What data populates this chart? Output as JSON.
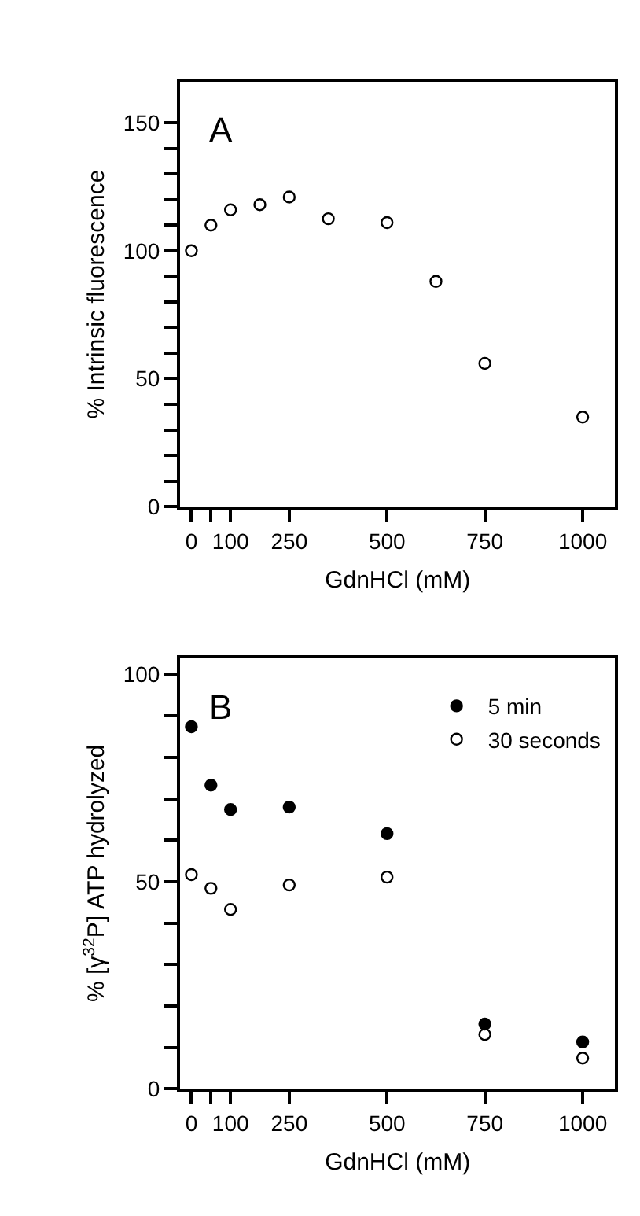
{
  "chart_data": [
    {
      "type": "scatter",
      "xlabel": "GdnHCl (mM)",
      "ylabel": "% Intrinsic fluorescence",
      "annotations": [
        "A"
      ],
      "series": [
        {
          "color": "#000000",
          "x": [
            0,
            50,
            100,
            175,
            250,
            350,
            500,
            625,
            750,
            1000
          ],
          "values": [
            100,
            110,
            116,
            118,
            121,
            112.5,
            111,
            88,
            56,
            35
          ],
          "marker": "circle-open"
        }
      ],
      "xlim": [
        -29,
        1083
      ],
      "xticks": [
        0,
        {
          "value": 50,
          "label": null
        },
        100,
        250,
        500,
        750,
        1000
      ],
      "ylim": [
        0,
        166
      ],
      "yticks": [
        0,
        {
          "value": 10,
          "label": null
        },
        {
          "value": 20,
          "label": null
        },
        {
          "value": 30,
          "label": null
        },
        {
          "value": 40,
          "label": null
        },
        50,
        {
          "value": 60,
          "label": null
        },
        {
          "value": 70,
          "label": null
        },
        {
          "value": 80,
          "label": null
        },
        {
          "value": 90,
          "label": null
        },
        100,
        {
          "value": 110,
          "label": null
        },
        {
          "value": 120,
          "label": null
        },
        {
          "value": 130,
          "label": null
        },
        {
          "value": 140,
          "label": null
        },
        150
      ],
      "legend": false
    },
    {
      "type": "scatter",
      "xlabel": "GdnHCl (mM)",
      "ylabel": "% [γ$^{32}$P] ATP hydrolyzed",
      "annotations": [
        "B"
      ],
      "series": [
        {
          "name": "5 min",
          "color": "#000000",
          "x": [
            0,
            50,
            100,
            250,
            500,
            750,
            1000
          ],
          "values": [
            87.4,
            73.3,
            67.4,
            68,
            61.6,
            15.6,
            11.3
          ],
          "marker": "circle"
        },
        {
          "name": "30 seconds",
          "color": "#000000",
          "x": [
            0,
            50,
            100,
            250,
            500,
            750,
            1000
          ],
          "values": [
            51.7,
            48.4,
            43.3,
            49.2,
            51.1,
            13.1,
            7.4
          ],
          "marker": "circle-open"
        }
      ],
      "xlim": [
        -29,
        1083
      ],
      "xticks": [
        0,
        {
          "value": 50,
          "label": null
        },
        100,
        250,
        500,
        750,
        1000
      ],
      "ylim": [
        0,
        104
      ],
      "yticks": [
        0,
        {
          "value": 10,
          "label": null
        },
        {
          "value": 20,
          "label": null
        },
        {
          "value": 30,
          "label": null
        },
        {
          "value": 40,
          "label": null
        },
        50,
        {
          "value": 60,
          "label": null
        },
        {
          "value": 70,
          "label": null
        },
        {
          "value": 80,
          "label": null
        },
        {
          "value": 90,
          "label": null
        },
        100
      ],
      "legend": "top right"
    }
  ]
}
